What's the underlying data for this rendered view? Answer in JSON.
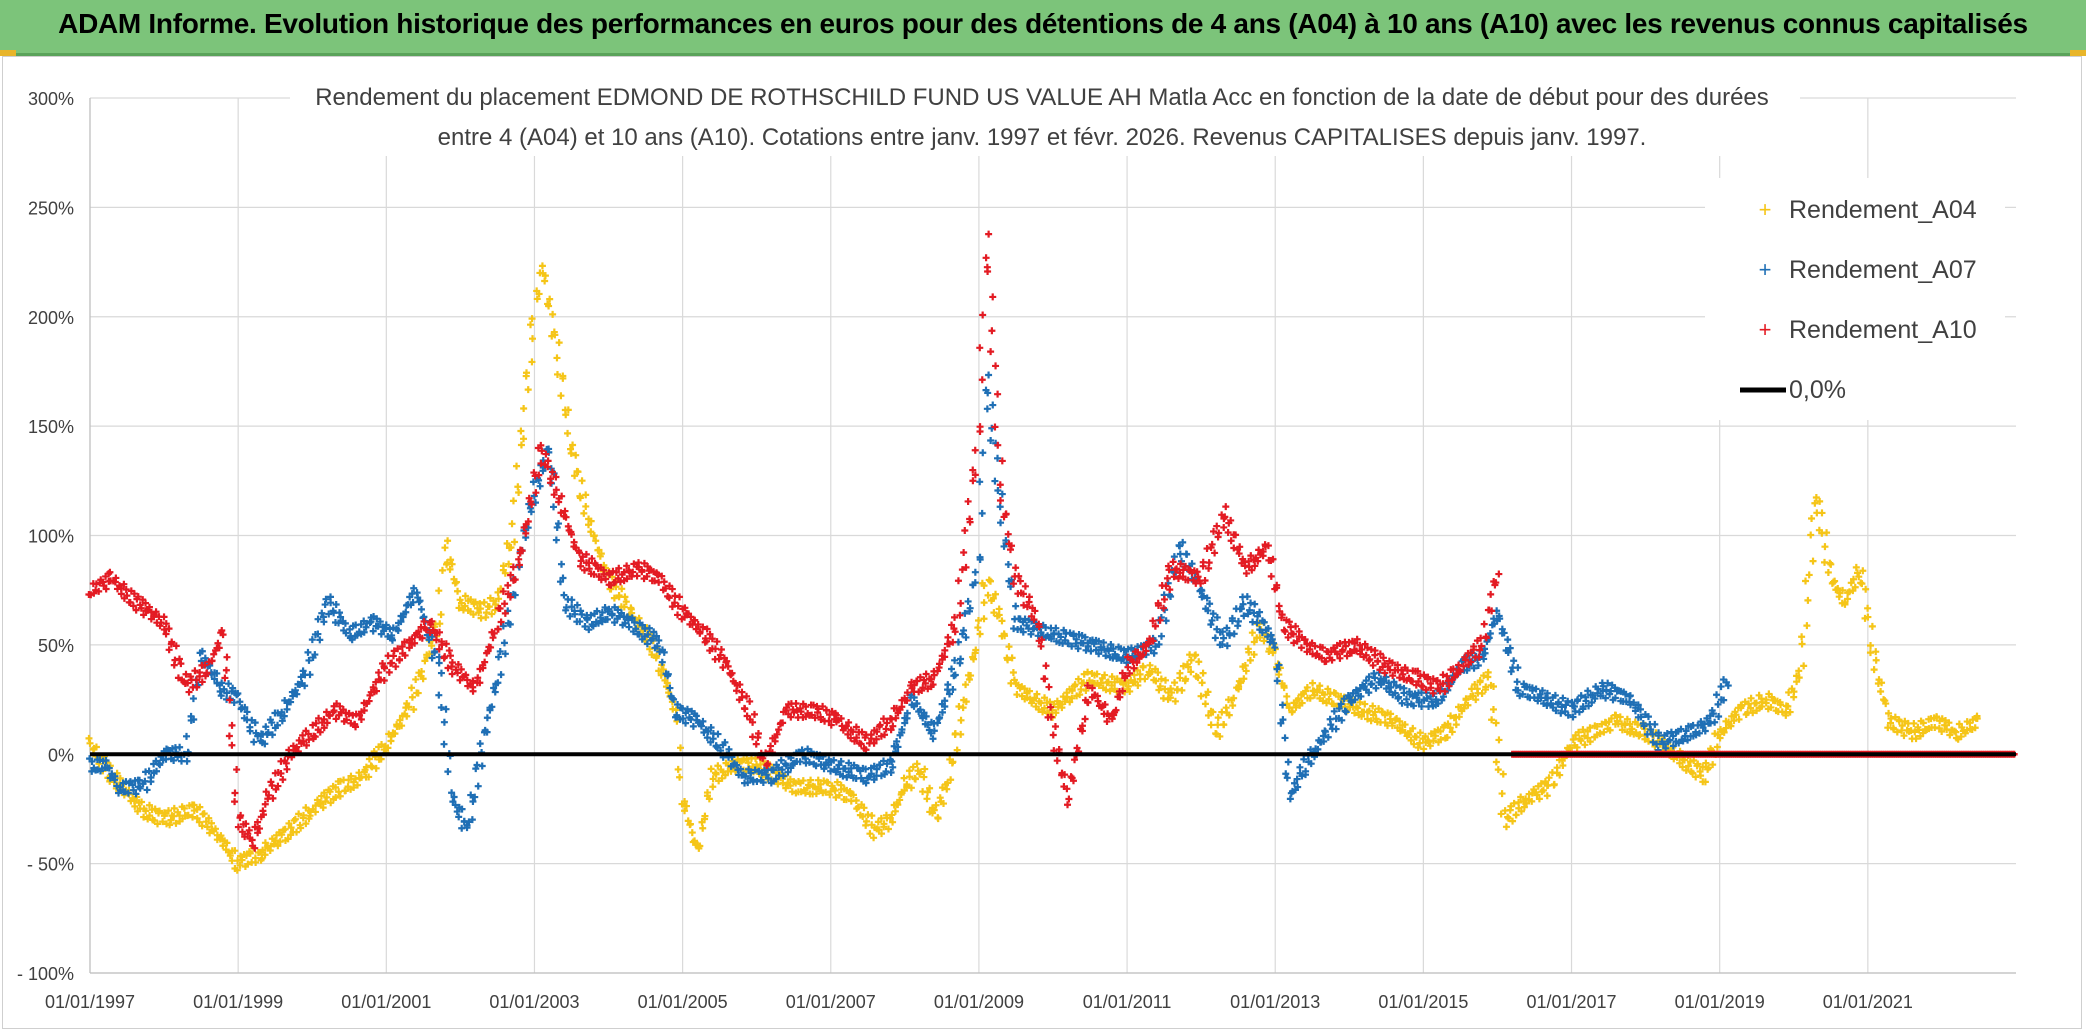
{
  "banner": {
    "title": "ADAM Informe. Evolution historique des performances en euros pour des détentions de 4 ans (A04) à 10 ans (A10) avec les revenus connus capitalisés"
  },
  "colors": {
    "banner_bg": "#7cc47a",
    "a04": "#f5c518",
    "a07": "#1f6fb5",
    "a10": "#e31b23",
    "zero_line": "#000000",
    "grid": "#d9d9d9"
  },
  "chart_data": {
    "type": "scatter",
    "title_line1": "Rendement du placement EDMOND DE ROTHSCHILD FUND US VALUE AH Matla Acc en fonction de la date de début pour des durées",
    "title_line2": "entre 4 (A04) et 10 ans (A10). Cotations entre janv. 1997 et févr. 2026. Revenus CAPITALISES depuis janv. 1997.",
    "xlabel": "",
    "ylabel": "",
    "x_range": [
      1997.0,
      2023.0
    ],
    "ylim": [
      -100,
      300
    ],
    "y_ticks": [
      {
        "value": 300,
        "label": "300%"
      },
      {
        "value": 250,
        "label": "250%"
      },
      {
        "value": 200,
        "label": "200%"
      },
      {
        "value": 150,
        "label": "150%"
      },
      {
        "value": 100,
        "label": "100%"
      },
      {
        "value": 50,
        "label": "50%"
      },
      {
        "value": 0,
        "label": "0%"
      },
      {
        "value": -50,
        "label": "- 50%"
      },
      {
        "value": -100,
        "label": "- 100%"
      }
    ],
    "x_ticks": [
      {
        "value": 1997,
        "label": "01/01/1997"
      },
      {
        "value": 1999,
        "label": "01/01/1999"
      },
      {
        "value": 2001,
        "label": "01/01/2001"
      },
      {
        "value": 2003,
        "label": "01/01/2003"
      },
      {
        "value": 2005,
        "label": "01/01/2005"
      },
      {
        "value": 2007,
        "label": "01/01/2007"
      },
      {
        "value": 2009,
        "label": "01/01/2009"
      },
      {
        "value": 2011,
        "label": "01/01/2011"
      },
      {
        "value": 2013,
        "label": "01/01/2013"
      },
      {
        "value": 2015,
        "label": "01/01/2015"
      },
      {
        "value": 2017,
        "label": "01/01/2017"
      },
      {
        "value": 2019,
        "label": "01/01/2019"
      },
      {
        "value": 2021,
        "label": "01/01/2021"
      }
    ],
    "legend": {
      "position": "top-right",
      "entries": [
        {
          "name": "Rendement_A04",
          "color": "#f5c518",
          "marker": "+"
        },
        {
          "name": "Rendement_A07",
          "color": "#1f6fb5",
          "marker": "+"
        },
        {
          "name": "Rendement_A10",
          "color": "#e31b23",
          "marker": "+"
        },
        {
          "name": "0,0%",
          "color": "#000000",
          "marker": "line"
        }
      ]
    },
    "reference_line": {
      "name": "0,0%",
      "y": 0
    },
    "series": [
      {
        "name": "Rendement_A04",
        "color": "#f5c518",
        "points": [
          [
            1997.0,
            5
          ],
          [
            1997.3,
            -10
          ],
          [
            1997.7,
            -25
          ],
          [
            1998.0,
            -30
          ],
          [
            1998.4,
            -25
          ],
          [
            1998.8,
            -40
          ],
          [
            1999.0,
            -50
          ],
          [
            1999.3,
            -45
          ],
          [
            1999.7,
            -35
          ],
          [
            2000.0,
            -25
          ],
          [
            2000.4,
            -15
          ],
          [
            2000.7,
            -10
          ],
          [
            2001.0,
            5
          ],
          [
            2001.3,
            20
          ],
          [
            2001.5,
            40
          ],
          [
            2001.7,
            60
          ],
          [
            2001.8,
            95
          ],
          [
            2002.0,
            70
          ],
          [
            2002.3,
            65
          ],
          [
            2002.5,
            70
          ],
          [
            2002.7,
            100
          ],
          [
            2002.9,
            170
          ],
          [
            2003.0,
            200
          ],
          [
            2003.1,
            225
          ],
          [
            2003.3,
            185
          ],
          [
            2003.5,
            140
          ],
          [
            2003.7,
            110
          ],
          [
            2004.0,
            80
          ],
          [
            2004.3,
            65
          ],
          [
            2004.6,
            50
          ],
          [
            2004.9,
            20
          ],
          [
            2005.0,
            -20
          ],
          [
            2005.2,
            -45
          ],
          [
            2005.4,
            -10
          ],
          [
            2005.7,
            -5
          ],
          [
            2006.0,
            -5
          ],
          [
            2006.5,
            -15
          ],
          [
            2007.0,
            -15
          ],
          [
            2007.3,
            -20
          ],
          [
            2007.6,
            -35
          ],
          [
            2007.8,
            -30
          ],
          [
            2008.0,
            -15
          ],
          [
            2008.2,
            -5
          ],
          [
            2008.4,
            -30
          ],
          [
            2008.6,
            -10
          ],
          [
            2008.8,
            25
          ],
          [
            2009.0,
            55
          ],
          [
            2009.1,
            80
          ],
          [
            2009.3,
            60
          ],
          [
            2009.5,
            30
          ],
          [
            2010.0,
            20
          ],
          [
            2010.5,
            35
          ],
          [
            2011.0,
            30
          ],
          [
            2011.3,
            40
          ],
          [
            2011.6,
            25
          ],
          [
            2011.9,
            45
          ],
          [
            2012.2,
            10
          ],
          [
            2012.5,
            30
          ],
          [
            2012.8,
            60
          ],
          [
            2013.0,
            45
          ],
          [
            2013.2,
            20
          ],
          [
            2013.5,
            30
          ],
          [
            2013.8,
            25
          ],
          [
            2014.2,
            20
          ],
          [
            2014.6,
            15
          ],
          [
            2015.0,
            5
          ],
          [
            2015.3,
            10
          ],
          [
            2015.6,
            25
          ],
          [
            2015.9,
            35
          ],
          [
            2016.1,
            -30
          ],
          [
            2016.4,
            -20
          ],
          [
            2016.7,
            -15
          ],
          [
            2017.0,
            5
          ],
          [
            2017.3,
            10
          ],
          [
            2017.6,
            15
          ],
          [
            2018.0,
            10
          ],
          [
            2018.4,
            0
          ],
          [
            2018.8,
            -10
          ],
          [
            2019.0,
            10
          ],
          [
            2019.3,
            20
          ],
          [
            2019.6,
            25
          ],
          [
            2019.9,
            20
          ],
          [
            2020.1,
            40
          ],
          [
            2020.3,
            120
          ],
          [
            2020.5,
            80
          ],
          [
            2020.7,
            70
          ],
          [
            2020.9,
            85
          ],
          [
            2021.1,
            40
          ],
          [
            2021.3,
            15
          ],
          [
            2021.6,
            10
          ],
          [
            2021.9,
            15
          ],
          [
            2022.2,
            10
          ],
          [
            2022.5,
            15
          ]
        ]
      },
      {
        "name": "Rendement_A07",
        "color": "#1f6fb5",
        "points": [
          [
            1997.0,
            -5
          ],
          [
            1997.2,
            -5
          ],
          [
            1997.4,
            -15
          ],
          [
            1997.7,
            -15
          ],
          [
            1998.0,
            0
          ],
          [
            1998.3,
            0
          ],
          [
            1998.5,
            45
          ],
          [
            1998.8,
            30
          ],
          [
            1999.0,
            25
          ],
          [
            1999.3,
            5
          ],
          [
            1999.6,
            20
          ],
          [
            1999.9,
            35
          ],
          [
            2000.2,
            70
          ],
          [
            2000.5,
            55
          ],
          [
            2000.8,
            60
          ],
          [
            2001.1,
            55
          ],
          [
            2001.4,
            75
          ],
          [
            2001.7,
            40
          ],
          [
            2001.9,
            -20
          ],
          [
            2002.1,
            -35
          ],
          [
            2002.3,
            5
          ],
          [
            2002.5,
            35
          ],
          [
            2002.8,
            90
          ],
          [
            2003.0,
            120
          ],
          [
            2003.2,
            140
          ],
          [
            2003.4,
            70
          ],
          [
            2003.7,
            60
          ],
          [
            2004.0,
            65
          ],
          [
            2004.3,
            60
          ],
          [
            2004.7,
            50
          ],
          [
            2004.9,
            20
          ],
          [
            2005.2,
            15
          ],
          [
            2005.5,
            5
          ],
          [
            2005.8,
            -10
          ],
          [
            2006.2,
            -10
          ],
          [
            2006.6,
            0
          ],
          [
            2007.0,
            -5
          ],
          [
            2007.5,
            -10
          ],
          [
            2007.8,
            -5
          ],
          [
            2008.1,
            25
          ],
          [
            2008.4,
            10
          ],
          [
            2008.7,
            40
          ],
          [
            2009.0,
            90
          ],
          [
            2009.1,
            175
          ],
          [
            2009.3,
            110
          ],
          [
            2009.5,
            60
          ],
          [
            2010.0,
            55
          ],
          [
            2010.5,
            50
          ],
          [
            2011.0,
            45
          ],
          [
            2011.4,
            50
          ],
          [
            2011.7,
            95
          ],
          [
            2012.0,
            75
          ],
          [
            2012.3,
            50
          ],
          [
            2012.6,
            70
          ],
          [
            2013.0,
            50
          ],
          [
            2013.2,
            -20
          ],
          [
            2013.4,
            -5
          ],
          [
            2013.7,
            10
          ],
          [
            2014.0,
            25
          ],
          [
            2014.4,
            35
          ],
          [
            2014.8,
            25
          ],
          [
            2015.2,
            25
          ],
          [
            2015.5,
            40
          ],
          [
            2015.8,
            45
          ],
          [
            2016.0,
            65
          ],
          [
            2016.3,
            30
          ],
          [
            2016.7,
            25
          ],
          [
            2017.0,
            20
          ],
          [
            2017.4,
            30
          ],
          [
            2017.8,
            25
          ],
          [
            2018.2,
            5
          ],
          [
            2018.6,
            10
          ],
          [
            2018.9,
            15
          ],
          [
            2019.1,
            35
          ]
        ]
      },
      {
        "name": "Rendement_A10",
        "color": "#e31b23",
        "points": [
          [
            1997.0,
            75
          ],
          [
            1997.3,
            80
          ],
          [
            1997.6,
            70
          ],
          [
            1998.0,
            60
          ],
          [
            1998.3,
            30
          ],
          [
            1998.6,
            40
          ],
          [
            1998.8,
            55
          ],
          [
            1999.0,
            -30
          ],
          [
            1999.2,
            -40
          ],
          [
            1999.4,
            -20
          ],
          [
            1999.7,
            0
          ],
          [
            2000.0,
            10
          ],
          [
            2000.3,
            20
          ],
          [
            2000.6,
            15
          ],
          [
            2001.0,
            40
          ],
          [
            2001.3,
            50
          ],
          [
            2001.6,
            60
          ],
          [
            2001.9,
            40
          ],
          [
            2002.2,
            30
          ],
          [
            2002.5,
            60
          ],
          [
            2002.8,
            90
          ],
          [
            2003.1,
            140
          ],
          [
            2003.3,
            120
          ],
          [
            2003.6,
            90
          ],
          [
            2004.0,
            80
          ],
          [
            2004.4,
            85
          ],
          [
            2004.7,
            80
          ],
          [
            2005.0,
            65
          ],
          [
            2005.3,
            55
          ],
          [
            2005.6,
            40
          ],
          [
            2005.9,
            20
          ],
          [
            2006.1,
            -5
          ],
          [
            2006.4,
            20
          ],
          [
            2006.8,
            20
          ],
          [
            2007.1,
            15
          ],
          [
            2007.5,
            5
          ],
          [
            2007.8,
            15
          ],
          [
            2008.1,
            30
          ],
          [
            2008.4,
            35
          ],
          [
            2008.7,
            60
          ],
          [
            2009.0,
            150
          ],
          [
            2009.1,
            240
          ],
          [
            2009.3,
            120
          ],
          [
            2009.5,
            80
          ],
          [
            2009.8,
            60
          ],
          [
            2010.0,
            10
          ],
          [
            2010.2,
            -20
          ],
          [
            2010.5,
            30
          ],
          [
            2010.8,
            15
          ],
          [
            2011.0,
            40
          ],
          [
            2011.3,
            50
          ],
          [
            2011.6,
            85
          ],
          [
            2012.0,
            80
          ],
          [
            2012.3,
            110
          ],
          [
            2012.6,
            85
          ],
          [
            2012.9,
            95
          ],
          [
            2013.1,
            60
          ],
          [
            2013.4,
            50
          ],
          [
            2013.7,
            45
          ],
          [
            2014.1,
            50
          ],
          [
            2014.5,
            40
          ],
          [
            2014.9,
            35
          ],
          [
            2015.2,
            30
          ],
          [
            2015.5,
            40
          ],
          [
            2015.8,
            50
          ],
          [
            2016.0,
            85
          ]
        ]
      }
    ],
    "a10_zero_segment": {
      "series": "Rendement_A10",
      "x_start": 2016.2,
      "x_end": 2023.0,
      "y": 0
    }
  }
}
